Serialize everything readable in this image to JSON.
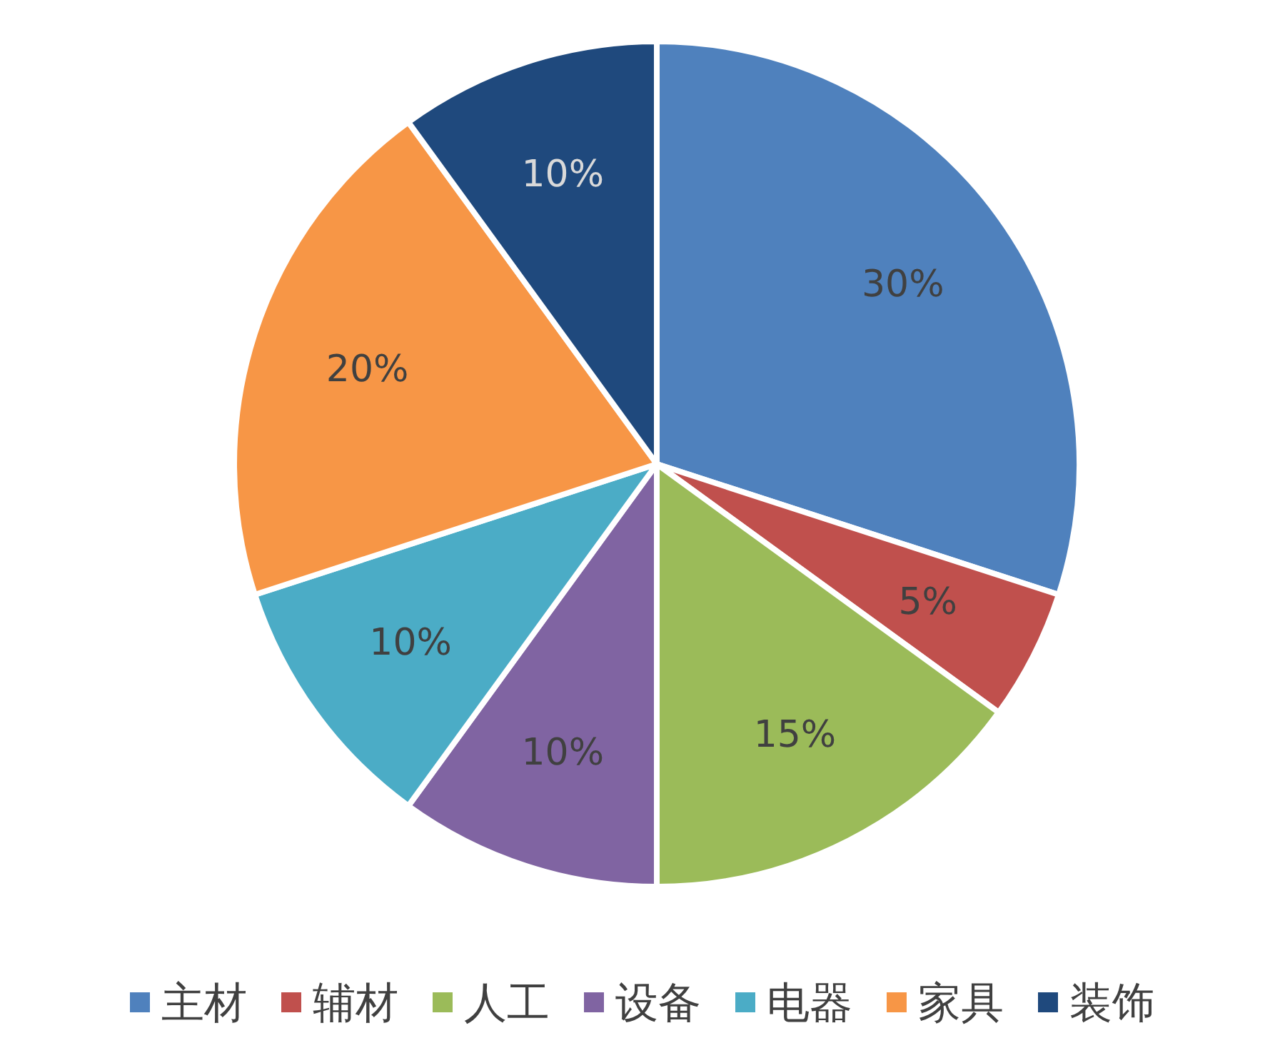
{
  "chart_data": {
    "type": "pie",
    "categories": [
      "主材",
      "辅材",
      "人工",
      "设备",
      "电器",
      "家具",
      "装饰"
    ],
    "values": [
      30,
      5,
      15,
      10,
      10,
      20,
      10
    ],
    "value_labels": [
      "30%",
      "5%",
      "15%",
      "10%",
      "10%",
      "20%",
      "10%"
    ],
    "colors": [
      "#4f81bd",
      "#c0504d",
      "#9bbb59",
      "#8064a2",
      "#4bacc6",
      "#f79646",
      "#1f497d"
    ],
    "legend": "bottom"
  }
}
